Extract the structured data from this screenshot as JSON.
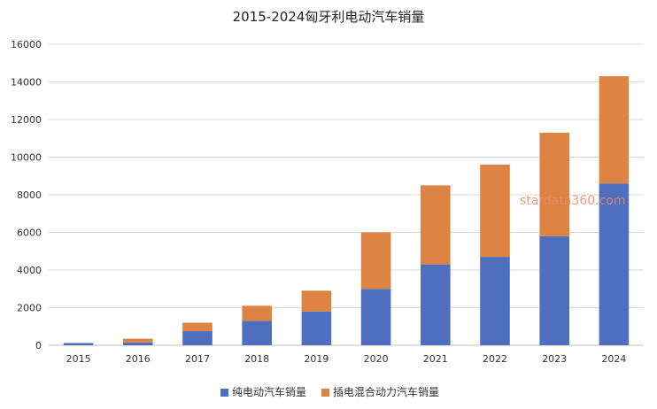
{
  "chart_data": {
    "type": "bar",
    "stacked": true,
    "title": "2015-2024匈牙利电动汽车销量",
    "categories": [
      "2015",
      "2016",
      "2017",
      "2018",
      "2019",
      "2020",
      "2021",
      "2022",
      "2023",
      "2024"
    ],
    "series": [
      {
        "name": "纯电动汽车销量",
        "color": "#4f6fbe",
        "values": [
          120,
          150,
          750,
          1300,
          1800,
          3000,
          4300,
          4700,
          5800,
          8600
        ]
      },
      {
        "name": "插电混合动力汽车销量",
        "color": "#dd8444",
        "values": [
          0,
          200,
          450,
          800,
          1100,
          3000,
          4200,
          4900,
          5500,
          5700
        ]
      }
    ],
    "ylim": [
      0,
      16000
    ],
    "yticks": [
      "0",
      "2000",
      "4000",
      "6000",
      "8000",
      "10000",
      "12000",
      "14000",
      "16000"
    ],
    "grid": true,
    "legend_position": "bottom",
    "watermark": "stardata360.com"
  }
}
